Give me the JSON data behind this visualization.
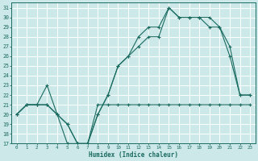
{
  "xlabel": "Humidex (Indice chaleur)",
  "bg_color": "#cce8e8",
  "line_color": "#1a6b60",
  "grid_color": "#ffffff",
  "xlim": [
    -0.5,
    23.5
  ],
  "ylim": [
    17,
    31.5
  ],
  "x_ticks": [
    0,
    1,
    2,
    3,
    4,
    5,
    6,
    7,
    8,
    9,
    10,
    11,
    12,
    13,
    14,
    15,
    16,
    17,
    18,
    19,
    20,
    21,
    22,
    23
  ],
  "y_ticks": [
    17,
    18,
    19,
    20,
    21,
    22,
    23,
    24,
    25,
    26,
    27,
    28,
    29,
    30,
    31
  ],
  "line1_x": [
    0,
    1,
    2,
    3,
    4,
    5,
    6,
    7,
    8,
    9,
    10,
    11,
    12,
    13,
    14,
    15,
    16,
    17,
    18,
    19,
    20,
    21,
    22,
    23
  ],
  "line1_y": [
    20,
    21,
    21,
    21,
    20,
    17,
    17,
    17,
    21,
    21,
    21,
    21,
    21,
    21,
    21,
    21,
    21,
    21,
    21,
    21,
    21,
    21,
    21,
    21
  ],
  "line2_x": [
    0,
    1,
    2,
    3,
    4,
    5,
    6,
    7,
    8,
    9,
    10,
    11,
    12,
    13,
    14,
    15,
    16,
    17,
    18,
    19,
    20,
    21,
    22,
    23
  ],
  "line2_y": [
    20,
    21,
    21,
    21,
    20,
    19,
    17,
    17,
    20,
    22,
    25,
    26,
    27,
    28,
    28,
    31,
    30,
    30,
    30,
    29,
    29,
    26,
    22,
    22
  ],
  "line3_x": [
    0,
    1,
    2,
    3,
    4,
    5,
    6,
    7,
    8,
    9,
    10,
    11,
    12,
    13,
    14,
    15,
    16,
    17,
    18,
    19,
    20,
    21,
    22,
    23
  ],
  "line3_y": [
    20,
    21,
    21,
    23,
    20,
    19,
    17,
    17,
    20,
    22,
    25,
    26,
    28,
    29,
    29,
    31,
    30,
    30,
    30,
    30,
    29,
    27,
    22,
    22
  ]
}
